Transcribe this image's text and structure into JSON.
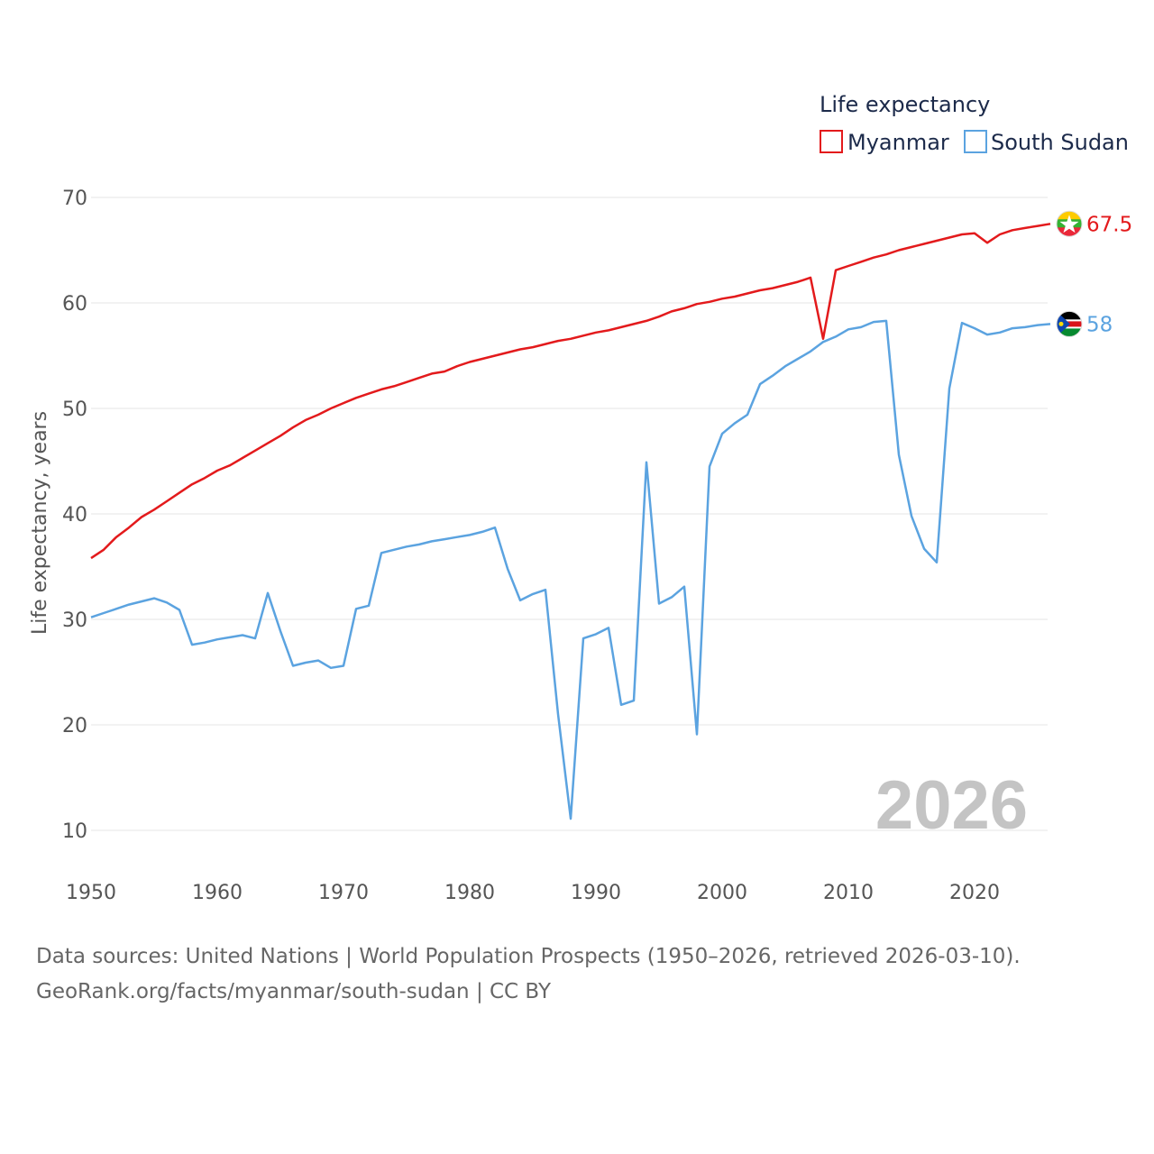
{
  "chart_data": {
    "type": "line",
    "title": "",
    "xlabel": "",
    "ylabel": "Life expectancy, years",
    "xlim": [
      1950,
      2026
    ],
    "ylim": [
      10,
      70
    ],
    "x_ticks": [
      1950,
      1960,
      1970,
      1980,
      1990,
      2000,
      2010,
      2020
    ],
    "y_ticks": [
      10,
      20,
      30,
      40,
      50,
      60,
      70
    ],
    "legend": {
      "title": "Life expectancy",
      "position": "top-right"
    },
    "year_label": "2026",
    "x": [
      1950,
      1951,
      1952,
      1953,
      1954,
      1955,
      1956,
      1957,
      1958,
      1959,
      1960,
      1961,
      1962,
      1963,
      1964,
      1965,
      1966,
      1967,
      1968,
      1969,
      1970,
      1971,
      1972,
      1973,
      1974,
      1975,
      1976,
      1977,
      1978,
      1979,
      1980,
      1981,
      1982,
      1983,
      1984,
      1985,
      1986,
      1987,
      1988,
      1989,
      1990,
      1991,
      1992,
      1993,
      1994,
      1995,
      1996,
      1997,
      1998,
      1999,
      2000,
      2001,
      2002,
      2003,
      2004,
      2005,
      2006,
      2007,
      2008,
      2009,
      2010,
      2011,
      2012,
      2013,
      2014,
      2015,
      2016,
      2017,
      2018,
      2019,
      2020,
      2021,
      2022,
      2023,
      2024,
      2025,
      2026
    ],
    "series": [
      {
        "name": "Myanmar",
        "color": "#e31a1c",
        "end_label": "67.5",
        "flag": "myanmar-flag",
        "values": [
          35.8,
          36.6,
          37.8,
          38.7,
          39.7,
          40.4,
          41.2,
          42.0,
          42.8,
          43.4,
          44.1,
          44.6,
          45.3,
          46.0,
          46.7,
          47.4,
          48.2,
          48.9,
          49.4,
          50.0,
          50.5,
          51.0,
          51.4,
          51.8,
          52.1,
          52.5,
          52.9,
          53.3,
          53.5,
          54.0,
          54.4,
          54.7,
          55.0,
          55.3,
          55.6,
          55.8,
          56.1,
          56.4,
          56.6,
          56.9,
          57.2,
          57.4,
          57.7,
          58.0,
          58.3,
          58.7,
          59.2,
          59.5,
          59.9,
          60.1,
          60.4,
          60.6,
          60.9,
          61.2,
          61.4,
          61.7,
          62.0,
          62.4,
          56.6,
          63.1,
          63.5,
          63.9,
          64.3,
          64.6,
          65.0,
          65.3,
          65.6,
          65.9,
          66.2,
          66.5,
          66.6,
          65.7,
          66.5,
          66.9,
          67.1,
          67.3,
          67.5
        ]
      },
      {
        "name": "South Sudan",
        "color": "#5ba3e0",
        "end_label": "58",
        "flag": "south-sudan-flag",
        "values": [
          30.2,
          30.6,
          31.0,
          31.4,
          31.7,
          32.0,
          31.6,
          30.9,
          27.6,
          27.8,
          28.1,
          28.3,
          28.5,
          28.2,
          32.5,
          28.9,
          25.6,
          25.9,
          26.1,
          25.4,
          25.6,
          31.0,
          31.3,
          36.3,
          36.6,
          36.9,
          37.1,
          37.4,
          37.6,
          37.8,
          38.0,
          38.3,
          38.7,
          34.8,
          31.8,
          32.4,
          32.8,
          21.0,
          11.1,
          28.2,
          28.6,
          29.2,
          21.9,
          22.3,
          44.9,
          31.5,
          32.1,
          33.1,
          19.1,
          44.5,
          47.6,
          48.6,
          49.4,
          52.3,
          53.1,
          54.0,
          54.7,
          55.4,
          56.3,
          56.8,
          57.5,
          57.7,
          58.2,
          58.3,
          45.6,
          39.8,
          36.7,
          35.4,
          51.9,
          58.1,
          57.6,
          57.0,
          57.2,
          57.6,
          57.7,
          57.9,
          58.0
        ]
      }
    ]
  },
  "source": {
    "line1": "Data sources: United Nations | World Population Prospects (1950–2026, retrieved 2026-03-10).",
    "line2": "GeoRank.org/facts/myanmar/south-sudan | CC BY"
  }
}
